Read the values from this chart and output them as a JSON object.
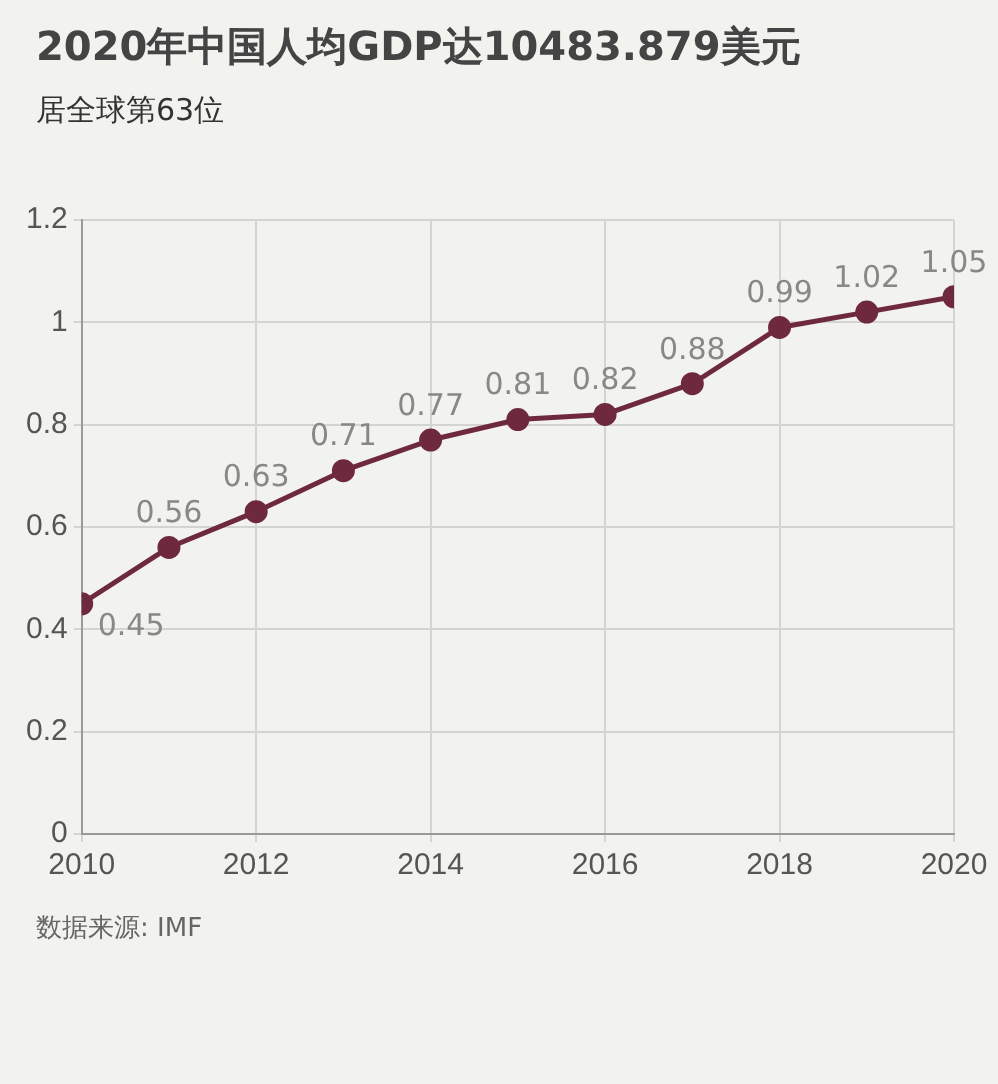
{
  "chart_data": {
    "type": "line",
    "title": "2020年中国人均GDP达10483.879美元",
    "subtitle": "居全球第63位",
    "x": [
      2010,
      2011,
      2012,
      2013,
      2014,
      2015,
      2016,
      2017,
      2018,
      2019,
      2020
    ],
    "series": [
      {
        "color": "#6e2a3c",
        "values": [
          0.45,
          0.56,
          0.63,
          0.71,
          0.77,
          0.81,
          0.82,
          0.88,
          0.99,
          1.02,
          1.05
        ]
      }
    ],
    "xlim": [
      2010,
      2020
    ],
    "xticks": [
      2010,
      2012,
      2014,
      2016,
      2018,
      2020
    ],
    "ylim": [
      0,
      1.2
    ],
    "yticks": [
      0,
      0.2,
      0.4,
      0.6,
      0.8,
      1,
      1.2
    ],
    "grid": true,
    "marker": "circle",
    "line_style": "solid",
    "data_labels": true,
    "legend": false,
    "annotations": [
      "数据来源: IMF"
    ]
  }
}
